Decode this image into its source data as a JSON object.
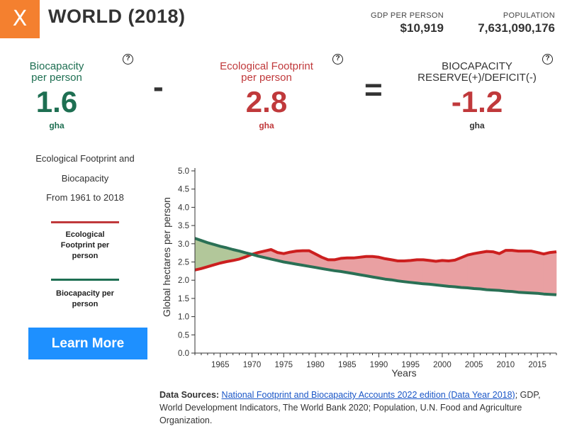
{
  "header": {
    "close_label": "X",
    "title": "WORLD (2018)",
    "gdp_label": "GDP PER PERSON",
    "gdp_value": "$10,919",
    "population_label": "POPULATION",
    "population_value": "7,631,090,176"
  },
  "metrics": {
    "biocapacity": {
      "label_line1": "Biocapacity",
      "label_line2": "per person",
      "value": "1.6",
      "unit": "gha",
      "color": "#1e6f52"
    },
    "footprint": {
      "label_line1": "Ecological Footprint",
      "label_line2": "per person",
      "value": "2.8",
      "unit": "gha",
      "color": "#c0393b"
    },
    "reserve": {
      "label_line1": "BIOCAPACITY",
      "label_line2": "RESERVE(+)/DEFICIT(-)",
      "value": "-1.2",
      "unit": "gha"
    },
    "help_icon": "?",
    "minus": "-",
    "equals": "="
  },
  "sidebar": {
    "line1": "Ecological Footprint and",
    "line2": "Biocapacity",
    "line3": "From 1961 to 2018",
    "legend_footprint_l1": "Ecological",
    "legend_footprint_l2": "Footprint per",
    "legend_footprint_l3": "person",
    "legend_bio_l1": "Biocapacity per",
    "legend_bio_l2": "person",
    "learn_more": "Learn More"
  },
  "chart_data": {
    "type": "area",
    "xlabel": "Years",
    "ylabel": "Global hectares per person",
    "xlim": [
      1961,
      2018
    ],
    "ylim": [
      0,
      5.0
    ],
    "yticks": [
      "0.0",
      "0.5",
      "1.0",
      "1.5",
      "2.0",
      "2.5",
      "3.0",
      "3.5",
      "4.0",
      "4.5",
      "5.0"
    ],
    "xticks": [
      1965,
      1970,
      1975,
      1980,
      1985,
      1990,
      1995,
      2000,
      2005,
      2010,
      2015
    ],
    "x": [
      1961,
      1962,
      1963,
      1964,
      1965,
      1966,
      1967,
      1968,
      1969,
      1970,
      1971,
      1972,
      1973,
      1974,
      1975,
      1976,
      1977,
      1978,
      1979,
      1980,
      1981,
      1982,
      1983,
      1984,
      1985,
      1986,
      1987,
      1988,
      1989,
      1990,
      1991,
      1992,
      1993,
      1994,
      1995,
      1996,
      1997,
      1998,
      1999,
      2000,
      2001,
      2002,
      2003,
      2004,
      2005,
      2006,
      2007,
      2008,
      2009,
      2010,
      2011,
      2012,
      2013,
      2014,
      2015,
      2016,
      2017,
      2018
    ],
    "series": [
      {
        "name": "Ecological Footprint per person",
        "color": "#cc1f1f",
        "values": [
          2.28,
          2.32,
          2.37,
          2.42,
          2.47,
          2.51,
          2.54,
          2.58,
          2.64,
          2.71,
          2.76,
          2.8,
          2.84,
          2.76,
          2.73,
          2.77,
          2.8,
          2.81,
          2.81,
          2.72,
          2.63,
          2.56,
          2.56,
          2.6,
          2.61,
          2.61,
          2.63,
          2.65,
          2.65,
          2.63,
          2.59,
          2.56,
          2.53,
          2.53,
          2.54,
          2.56,
          2.56,
          2.54,
          2.52,
          2.54,
          2.53,
          2.55,
          2.62,
          2.69,
          2.73,
          2.76,
          2.79,
          2.78,
          2.73,
          2.82,
          2.82,
          2.8,
          2.8,
          2.8,
          2.76,
          2.72,
          2.76,
          2.78
        ]
      },
      {
        "name": "Biocapacity per person",
        "color": "#2a7055",
        "values": [
          3.15,
          3.09,
          3.03,
          2.98,
          2.93,
          2.89,
          2.84,
          2.8,
          2.75,
          2.71,
          2.66,
          2.62,
          2.58,
          2.54,
          2.5,
          2.47,
          2.44,
          2.41,
          2.38,
          2.35,
          2.32,
          2.29,
          2.26,
          2.24,
          2.21,
          2.18,
          2.15,
          2.12,
          2.09,
          2.06,
          2.03,
          2.01,
          1.98,
          1.96,
          1.94,
          1.92,
          1.9,
          1.89,
          1.87,
          1.85,
          1.83,
          1.82,
          1.8,
          1.79,
          1.77,
          1.76,
          1.74,
          1.73,
          1.72,
          1.7,
          1.69,
          1.67,
          1.66,
          1.65,
          1.64,
          1.62,
          1.61,
          1.6
        ]
      }
    ],
    "deficit_fill": "#e9a0a2",
    "reserve_fill": "#b2c79a"
  },
  "sources": {
    "label": "Data Sources:",
    "link_text": "National Footprint and Biocapacity Accounts 2022 edition (Data Year 2018)",
    "rest": "; GDP, World Development Indicators, The World Bank 2020; Population, U.N. Food and Agriculture Organization."
  }
}
